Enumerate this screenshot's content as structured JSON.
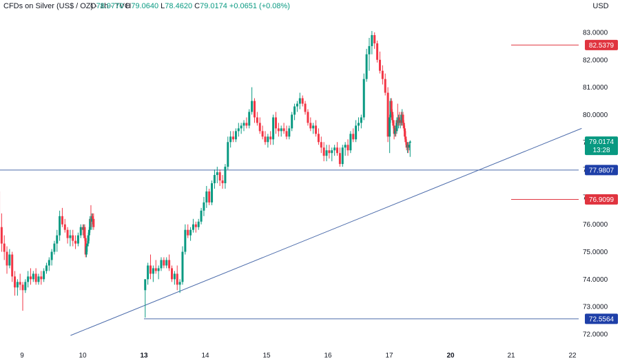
{
  "header": {
    "symbol": "CFDs on Silver (US$ / OZ) · 1h · TVC",
    "o_label": "O",
    "o": "78.9770",
    "h_label": "H",
    "h": "79.0640",
    "l_label": "L",
    "l": "78.4620",
    "c_label": "C",
    "c": "79.0174",
    "change": "+0.0651 (+0.08%)"
  },
  "currency": "USD",
  "colors": {
    "up": "#089981",
    "down": "#f23645",
    "line": "#4a6aaa",
    "level_blue": "#1e3fa8",
    "level_red": "#e0343f",
    "last_price": "#089981"
  },
  "chart_data": {
    "type": "candlestick",
    "y_ticks": [
      "83.0000",
      "82.0000",
      "81.0000",
      "80.0000",
      "79.0000",
      "78.0000",
      "77.0000",
      "76.0000",
      "75.0000",
      "74.0000",
      "73.0000",
      "72.0000"
    ],
    "ylim": [
      71.8,
      83.2
    ],
    "x_ticks": [
      {
        "label": "9",
        "day": 9
      },
      {
        "label": "10",
        "day": 10
      },
      {
        "label": "13",
        "day": 13,
        "bold": true
      },
      {
        "label": "14",
        "day": 14
      },
      {
        "label": "15",
        "day": 15
      },
      {
        "label": "16",
        "day": 16
      },
      {
        "label": "17",
        "day": 17
      },
      {
        "label": "20",
        "day": 20,
        "bold": true
      },
      {
        "label": "21",
        "day": 21
      },
      {
        "label": "22",
        "day": 22
      }
    ],
    "price_tags": [
      {
        "price": 82.5379,
        "label": "82.5379",
        "type": "red"
      },
      {
        "price": 77.9807,
        "label": "77.9807",
        "type": "blue"
      },
      {
        "price": 76.9099,
        "label": "76.9099",
        "type": "red"
      },
      {
        "price": 72.5564,
        "label": "72.5564",
        "type": "blue"
      }
    ],
    "last_price": {
      "price": 79.0174,
      "label": "79.0174",
      "countdown": "13:28"
    },
    "levels": [
      {
        "price": 77.9807,
        "from": "left",
        "style": "blue"
      },
      {
        "price": 72.5564,
        "from_day": 13,
        "style": "blue"
      },
      {
        "price": 82.5379,
        "from_day": 21,
        "style": "red"
      },
      {
        "price": 76.9099,
        "from_day": 21,
        "style": "red"
      }
    ],
    "trendline": {
      "start": {
        "day": 9.8,
        "price": 71.95
      },
      "end": {
        "day": 22.15,
        "price": 79.5
      }
    },
    "segments": [
      {
        "start_day": 8.62,
        "step": 0.0435,
        "candles": [
          [
            77.2,
            77.5,
            75.5,
            75.9
          ],
          [
            75.9,
            76.4,
            75.0,
            75.3
          ],
          [
            75.3,
            75.6,
            74.7,
            75.0
          ],
          [
            75.0,
            75.2,
            74.2,
            74.5
          ],
          [
            74.5,
            75.1,
            74.4,
            74.9
          ],
          [
            74.9,
            75.0,
            73.9,
            74.1
          ],
          [
            74.1,
            74.3,
            73.4,
            73.7
          ],
          [
            73.7,
            74.0,
            73.4,
            73.9
          ],
          [
            73.9,
            74.2,
            73.6,
            73.8
          ],
          [
            73.8,
            73.9,
            72.85,
            73.6
          ],
          [
            73.6,
            74.0,
            73.5,
            73.9
          ],
          [
            73.9,
            74.3,
            73.7,
            74.1
          ],
          [
            74.1,
            74.4,
            73.8,
            74.0
          ],
          [
            74.0,
            74.3,
            73.9,
            74.2
          ],
          [
            74.2,
            74.4,
            73.8,
            73.9
          ],
          [
            73.9,
            74.2,
            73.8,
            74.1
          ],
          [
            74.1,
            74.3,
            73.8,
            74.0
          ],
          [
            74.0,
            74.4,
            73.9,
            74.3
          ],
          [
            74.3,
            74.6,
            74.2,
            74.5
          ],
          [
            74.5,
            74.8,
            74.3,
            74.7
          ],
          [
            74.7,
            75.1,
            74.5,
            75.0
          ],
          [
            75.0,
            75.4,
            74.9,
            75.3
          ],
          [
            75.3,
            75.8,
            75.0,
            75.6
          ],
          [
            75.6,
            76.5,
            75.4,
            76.3
          ],
          [
            76.3,
            76.6,
            75.9,
            76.0
          ],
          [
            76.0,
            76.2,
            75.7,
            75.8
          ],
          [
            75.8,
            75.9,
            75.3,
            75.5
          ],
          [
            75.5,
            75.8,
            75.2,
            75.6
          ],
          [
            75.6,
            75.8,
            75.2,
            75.4
          ],
          [
            75.4,
            75.6,
            75.1,
            75.3
          ],
          [
            75.3,
            75.7,
            75.2,
            75.6
          ],
          [
            75.6,
            76.0,
            75.5,
            75.9
          ],
          [
            75.9,
            76.0,
            75.6,
            75.8
          ],
          [
            75.8,
            76.0,
            75.5,
            75.9
          ],
          [
            75.9,
            76.0,
            75.4,
            75.5
          ],
          [
            75.5,
            75.6,
            74.8,
            74.9
          ],
          [
            74.9,
            75.3,
            74.8,
            75.2
          ],
          [
            75.2,
            75.4,
            75.0,
            75.3
          ],
          [
            75.3,
            75.7,
            75.2,
            75.6
          ],
          [
            75.6,
            75.9,
            75.4,
            75.8
          ],
          [
            75.8,
            76.3,
            75.7,
            76.2
          ],
          [
            76.2,
            76.7,
            75.9,
            76.1
          ],
          [
            76.1,
            76.4,
            75.8,
            76.3
          ],
          [
            76.3,
            76.4,
            76.0,
            76.2
          ],
          [
            76.2,
            76.4,
            75.8,
            75.9
          ]
        ]
      },
      {
        "start_day": 13.02,
        "step": 0.0435,
        "candles": [
          [
            73.6,
            74.0,
            72.6,
            74.0
          ],
          [
            74.0,
            74.6,
            73.8,
            74.5
          ],
          [
            74.5,
            74.9,
            74.0,
            74.2
          ],
          [
            74.2,
            74.5,
            73.9,
            74.4
          ],
          [
            74.4,
            74.7,
            74.2,
            74.3
          ],
          [
            74.3,
            74.5,
            74.0,
            74.4
          ],
          [
            74.4,
            74.8,
            74.3,
            74.7
          ],
          [
            74.7,
            74.8,
            74.4,
            74.5
          ],
          [
            74.5,
            74.8,
            74.4,
            74.7
          ],
          [
            74.7,
            74.9,
            74.3,
            74.4
          ],
          [
            74.4,
            74.5,
            73.9,
            74.0
          ],
          [
            74.0,
            74.3,
            73.8,
            74.2
          ],
          [
            74.2,
            74.5,
            73.6,
            73.8
          ],
          [
            73.8,
            74.0,
            73.5,
            73.9
          ],
          [
            73.9,
            75.2,
            73.8,
            75.0
          ],
          [
            75.0,
            76.0,
            74.9,
            75.8
          ],
          [
            75.8,
            76.0,
            75.5,
            75.6
          ],
          [
            75.6,
            75.9,
            75.4,
            75.8
          ],
          [
            75.8,
            76.2,
            75.7,
            76.0
          ],
          [
            76.0,
            76.1,
            75.7,
            75.9
          ],
          [
            75.9,
            76.2,
            75.8,
            76.1
          ],
          [
            76.1,
            76.6,
            76.0,
            76.5
          ],
          [
            76.5,
            77.0,
            76.3,
            76.8
          ],
          [
            76.8,
            77.4,
            76.6,
            77.2
          ],
          [
            77.2,
            77.3,
            76.7,
            76.8
          ],
          [
            76.8,
            77.6,
            76.7,
            77.5
          ],
          [
            77.5,
            78.0,
            77.3,
            77.8
          ],
          [
            77.8,
            78.1,
            77.5,
            77.9
          ],
          [
            77.9,
            78.0,
            77.4,
            77.6
          ],
          [
            77.6,
            77.8,
            77.3,
            77.5
          ],
          [
            77.5,
            78.2,
            77.3,
            78.1
          ],
          [
            78.1,
            79.2,
            78.0,
            79.0
          ],
          [
            79.0,
            79.4,
            78.8,
            79.2
          ],
          [
            79.2,
            79.4,
            79.0,
            79.1
          ],
          [
            79.1,
            79.5,
            79.0,
            79.4
          ],
          [
            79.4,
            79.7,
            79.2,
            79.5
          ],
          [
            79.5,
            79.7,
            79.3,
            79.6
          ],
          [
            79.6,
            79.8,
            79.4,
            79.7
          ],
          [
            79.7,
            79.9,
            79.5,
            79.6
          ],
          [
            79.6,
            80.2,
            79.5,
            80.1
          ],
          [
            80.1,
            81.0,
            80.0,
            80.5
          ],
          [
            80.5,
            80.6,
            79.7,
            79.9
          ],
          [
            79.9,
            80.1,
            79.6,
            79.7
          ],
          [
            79.7,
            79.9,
            79.3,
            79.4
          ],
          [
            79.4,
            79.6,
            79.1,
            79.2
          ],
          [
            79.2,
            79.4,
            78.9,
            79.0
          ],
          [
            79.0,
            79.3,
            78.8,
            79.2
          ],
          [
            79.2,
            79.4,
            78.9,
            79.1
          ],
          [
            79.1,
            80.0,
            78.9,
            79.9
          ],
          [
            79.9,
            80.1,
            79.3,
            79.5
          ],
          [
            79.5,
            79.7,
            79.2,
            79.4
          ],
          [
            79.4,
            79.6,
            79.2,
            79.5
          ],
          [
            79.5,
            79.7,
            79.3,
            79.4
          ],
          [
            79.4,
            79.6,
            79.1,
            79.2
          ],
          [
            79.2,
            79.6,
            79.1,
            79.5
          ],
          [
            79.5,
            80.1,
            79.4,
            80.0
          ],
          [
            80.0,
            80.4,
            79.8,
            80.3
          ],
          [
            80.3,
            80.5,
            80.1,
            80.4
          ],
          [
            80.4,
            80.8,
            80.2,
            80.6
          ],
          [
            80.6,
            80.7,
            80.3,
            80.4
          ],
          [
            80.4,
            80.5,
            80.0,
            80.1
          ],
          [
            80.1,
            80.2,
            79.6,
            79.7
          ],
          [
            79.7,
            79.9,
            79.4,
            79.5
          ],
          [
            79.5,
            79.7,
            79.3,
            79.6
          ],
          [
            79.6,
            79.8,
            79.2,
            79.3
          ],
          [
            79.3,
            79.5,
            78.9,
            79.0
          ],
          [
            79.0,
            79.2,
            78.6,
            78.8
          ],
          [
            78.8,
            79.0,
            78.3,
            78.5
          ],
          [
            78.5,
            78.9,
            78.3,
            78.7
          ],
          [
            78.7,
            78.9,
            78.4,
            78.6
          ],
          [
            78.6,
            78.8,
            78.3,
            78.7
          ],
          [
            78.7,
            78.9,
            78.5,
            78.8
          ],
          [
            78.8,
            79.0,
            78.5,
            78.6
          ],
          [
            78.6,
            78.8,
            78.1,
            78.2
          ],
          [
            78.2,
            78.9,
            78.1,
            78.8
          ],
          [
            78.8,
            79.0,
            78.5,
            78.9
          ],
          [
            78.9,
            79.1,
            78.5,
            78.7
          ],
          [
            78.7,
            79.4,
            78.6,
            79.3
          ],
          [
            79.3,
            79.5,
            79.0,
            79.1
          ],
          [
            79.1,
            79.8,
            79.0,
            79.6
          ],
          [
            79.6,
            79.9,
            79.4,
            79.7
          ],
          [
            79.7,
            80.0,
            79.5,
            79.9
          ],
          [
            79.9,
            81.5,
            79.8,
            81.3
          ],
          [
            81.3,
            82.4,
            81.2,
            82.2
          ],
          [
            82.2,
            82.8,
            81.6,
            82.5
          ],
          [
            82.5,
            83.05,
            82.2,
            82.9
          ],
          [
            82.9,
            83.0,
            82.4,
            82.6
          ],
          [
            82.6,
            82.7,
            81.9,
            82.0
          ],
          [
            82.0,
            82.3,
            81.5,
            81.6
          ],
          [
            81.6,
            81.8,
            81.1,
            81.3
          ],
          [
            81.3,
            81.5,
            80.7,
            80.8
          ],
          [
            80.8,
            81.0,
            79.0,
            79.2
          ],
          [
            79.2,
            80.0,
            78.6,
            79.9
          ],
          [
            79.9,
            80.6,
            79.7,
            80.5
          ],
          [
            80.5,
            80.6,
            80.0,
            80.1
          ],
          [
            80.1,
            80.2,
            79.7,
            79.8
          ],
          [
            79.8,
            80.0,
            79.5,
            79.6
          ],
          [
            79.6,
            79.8,
            79.1,
            79.3
          ],
          [
            79.3,
            79.6,
            79.2,
            79.5
          ],
          [
            79.5,
            79.7,
            79.2,
            79.4
          ],
          [
            79.4,
            79.9,
            79.3,
            79.8
          ],
          [
            79.8,
            80.4,
            79.6,
            79.7
          ],
          [
            79.7,
            80.0,
            79.5,
            79.9
          ],
          [
            79.9,
            80.1,
            79.6,
            79.7
          ],
          [
            79.7,
            80.0,
            79.5,
            79.8
          ],
          [
            79.8,
            80.1,
            79.6,
            79.7
          ],
          [
            79.7,
            80.2,
            79.6,
            80.0
          ],
          [
            80.0,
            80.1,
            79.6,
            79.7
          ],
          [
            79.7,
            79.8,
            79.4,
            79.5
          ],
          [
            79.5,
            79.6,
            79.1,
            79.2
          ],
          [
            79.2,
            79.4,
            78.9,
            79.0
          ],
          [
            79.0,
            79.1,
            78.7,
            78.8
          ],
          [
            78.8,
            79.0,
            78.6,
            78.9
          ],
          [
            78.9,
            79.0,
            78.6,
            78.8
          ],
          [
            78.8,
            79.0,
            78.7,
            78.9
          ],
          [
            78.977,
            79.064,
            78.462,
            79.0174
          ]
        ]
      }
    ]
  }
}
